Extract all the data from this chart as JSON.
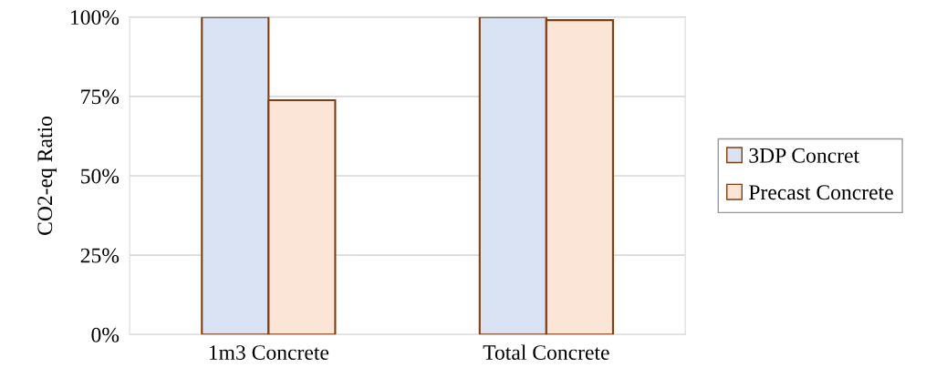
{
  "chart_data": {
    "type": "bar",
    "ylabel": "CO2-eq Ratio",
    "categories": [
      "1m3 Concrete",
      "Total Concrete"
    ],
    "series": [
      {
        "name": "3DP Concret",
        "color": "#dae3f3",
        "values": [
          100,
          100
        ]
      },
      {
        "name": "Precast Concrete",
        "color": "#fbe5d6",
        "values": [
          73.8,
          99
        ]
      }
    ],
    "ylim": [
      0,
      100
    ],
    "yticks": [
      {
        "value": 0,
        "label": "0%"
      },
      {
        "value": 25,
        "label": "25%"
      },
      {
        "value": 50,
        "label": "50%"
      },
      {
        "value": 75,
        "label": "75%"
      },
      {
        "value": 100,
        "label": "100%"
      }
    ],
    "grid": "y",
    "legend": "right"
  }
}
